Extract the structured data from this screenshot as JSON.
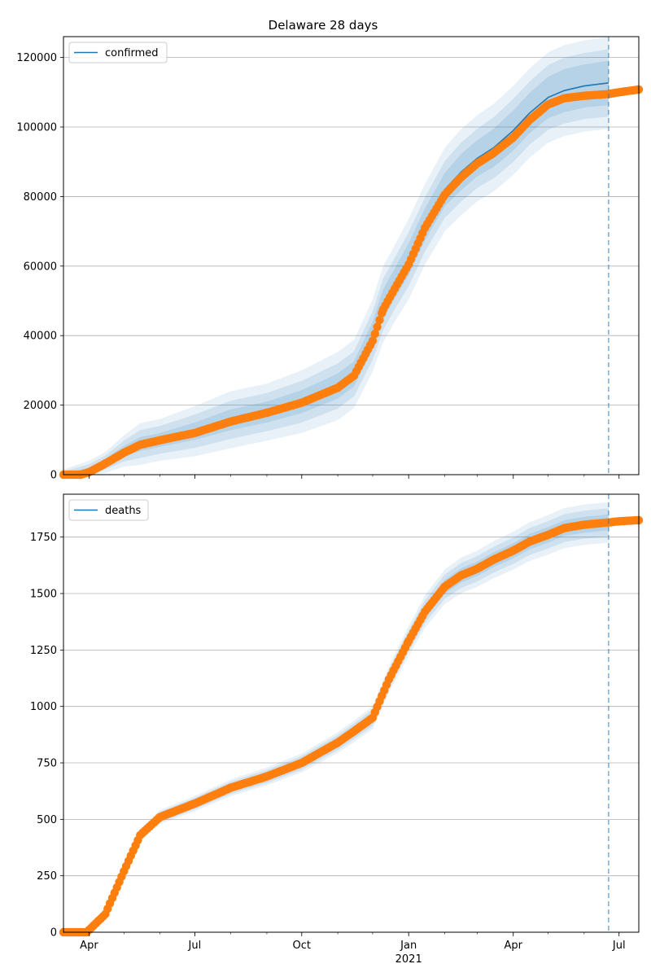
{
  "figure": {
    "title": "Delaware 28 days"
  },
  "colors": {
    "model": "#1f77b4",
    "observed": "#ff7f0e",
    "grid": "#b0b0b0"
  },
  "chart_data": [
    {
      "type": "line",
      "title": "Delaware 28 days",
      "legend": {
        "label": "confirmed",
        "placement": "top-left"
      },
      "x_ticks": [
        "Apr",
        "Jul",
        "Oct",
        "Jan",
        "Apr",
        "Jul"
      ],
      "x_sub_label": "2021",
      "x_range": [
        "2020-03-10",
        "2021-07-18"
      ],
      "forecast_start": "2021-06-22",
      "ylim": [
        0,
        126000
      ],
      "y_ticks": [
        0,
        20000,
        40000,
        60000,
        80000,
        100000,
        120000
      ],
      "grid": "horizontal",
      "series": [
        {
          "name": "confirmed",
          "style": "line",
          "dates": [
            "2020-03-10",
            "2020-04-01",
            "2020-04-15",
            "2020-05-01",
            "2020-05-15",
            "2020-06-01",
            "2020-07-01",
            "2020-08-01",
            "2020-09-01",
            "2020-10-01",
            "2020-11-01",
            "2020-11-15",
            "2020-12-01",
            "2020-12-10",
            "2020-12-20",
            "2021-01-01",
            "2021-01-15",
            "2021-02-01",
            "2021-02-15",
            "2021-03-01",
            "2021-03-15",
            "2021-04-01",
            "2021-04-15",
            "2021-05-01",
            "2021-05-15",
            "2021-06-01",
            "2021-06-22"
          ],
          "values": [
            0,
            1000,
            3500,
            6800,
            8800,
            10000,
            12500,
            15800,
            18000,
            21000,
            25500,
            29000,
            40000,
            49000,
            55000,
            62000,
            72000,
            82000,
            87000,
            91000,
            94000,
            99000,
            104000,
            108500,
            110500,
            111800,
            112700
          ],
          "band_inner": [
            500,
            1000,
            1500,
            2000,
            2500,
            3000,
            3300,
            3600,
            4000,
            4300,
            4600,
            4800,
            5200,
            5500,
            5800,
            6000,
            6200,
            6400
          ],
          "band_mid": [
            1000,
            2000,
            3000,
            4000,
            4800,
            5500,
            6000,
            6500,
            7000,
            7400,
            7800,
            8200,
            8500,
            8800,
            9100,
            9300,
            9500,
            9700
          ],
          "band_outer": [
            1500,
            3000,
            4500,
            6000,
            7200,
            8200,
            9000,
            9800,
            10400,
            11000,
            11600,
            12000,
            12400,
            12600,
            12800,
            13000,
            13100,
            13200
          ]
        },
        {
          "name": "",
          "style": "markers",
          "dates": [
            "2020-03-10",
            "2020-03-25",
            "2020-04-01",
            "2020-04-15",
            "2020-05-01",
            "2020-05-15",
            "2020-06-01",
            "2020-07-01",
            "2020-08-01",
            "2020-09-01",
            "2020-10-01",
            "2020-11-01",
            "2020-11-15",
            "2020-12-01",
            "2020-12-10",
            "2020-12-20",
            "2021-01-01",
            "2021-01-15",
            "2021-02-01",
            "2021-02-15",
            "2021-03-01",
            "2021-03-15",
            "2021-04-01",
            "2021-04-15",
            "2021-05-01",
            "2021-05-15",
            "2021-06-01",
            "2021-06-22",
            "2021-07-01",
            "2021-07-18"
          ],
          "values": [
            0,
            0,
            700,
            3200,
            6300,
            8600,
            9900,
            12000,
            15300,
            17800,
            20700,
            25000,
            28500,
            38500,
            47500,
            53500,
            60500,
            71000,
            80500,
            85500,
            89500,
            92500,
            97000,
            102000,
            106500,
            108300,
            109000,
            109500,
            110000,
            110800
          ]
        }
      ]
    },
    {
      "type": "line",
      "legend": {
        "label": "deaths",
        "placement": "top-left"
      },
      "x_ticks": [
        "Apr",
        "Jul",
        "Oct",
        "Jan",
        "Apr",
        "Jul"
      ],
      "x_sub_label": "2021",
      "x_range": [
        "2020-03-10",
        "2021-07-18"
      ],
      "forecast_start": "2021-06-22",
      "ylim": [
        0,
        1940
      ],
      "y_ticks": [
        0,
        250,
        500,
        750,
        1000,
        1250,
        1500,
        1750
      ],
      "grid": "horizontal",
      "series": [
        {
          "name": "deaths",
          "style": "line",
          "dates": [
            "2020-03-10",
            "2020-04-01",
            "2020-04-15",
            "2020-05-01",
            "2020-05-15",
            "2020-06-01",
            "2020-07-01",
            "2020-08-01",
            "2020-09-01",
            "2020-10-01",
            "2020-11-01",
            "2020-11-15",
            "2020-12-01",
            "2020-12-15",
            "2021-01-01",
            "2021-01-15",
            "2021-02-01",
            "2021-02-15",
            "2021-03-01",
            "2021-03-15",
            "2021-04-01",
            "2021-04-15",
            "2021-05-01",
            "2021-05-15",
            "2021-06-01",
            "2021-06-22"
          ],
          "values": [
            0,
            10,
            80,
            270,
            430,
            510,
            570,
            640,
            690,
            750,
            840,
            890,
            950,
            1120,
            1290,
            1420,
            1530,
            1580,
            1610,
            1650,
            1690,
            1730,
            1760,
            1790,
            1805,
            1815
          ]
        },
        {
          "name": "",
          "style": "markers",
          "dates": [
            "2020-03-10",
            "2020-03-30",
            "2020-04-01",
            "2020-04-15",
            "2020-05-01",
            "2020-05-15",
            "2020-06-01",
            "2020-07-01",
            "2020-08-01",
            "2020-09-01",
            "2020-10-01",
            "2020-11-01",
            "2020-11-15",
            "2020-12-01",
            "2020-12-15",
            "2021-01-01",
            "2021-01-15",
            "2021-02-01",
            "2021-02-15",
            "2021-03-01",
            "2021-03-15",
            "2021-04-01",
            "2021-04-15",
            "2021-05-01",
            "2021-05-15",
            "2021-06-01",
            "2021-06-22",
            "2021-07-01",
            "2021-07-18"
          ],
          "values": [
            0,
            0,
            10,
            80,
            270,
            430,
            510,
            570,
            640,
            690,
            750,
            840,
            890,
            950,
            1120,
            1290,
            1420,
            1530,
            1580,
            1610,
            1650,
            1690,
            1730,
            1760,
            1790,
            1805,
            1815,
            1820,
            1825
          ]
        }
      ]
    }
  ]
}
